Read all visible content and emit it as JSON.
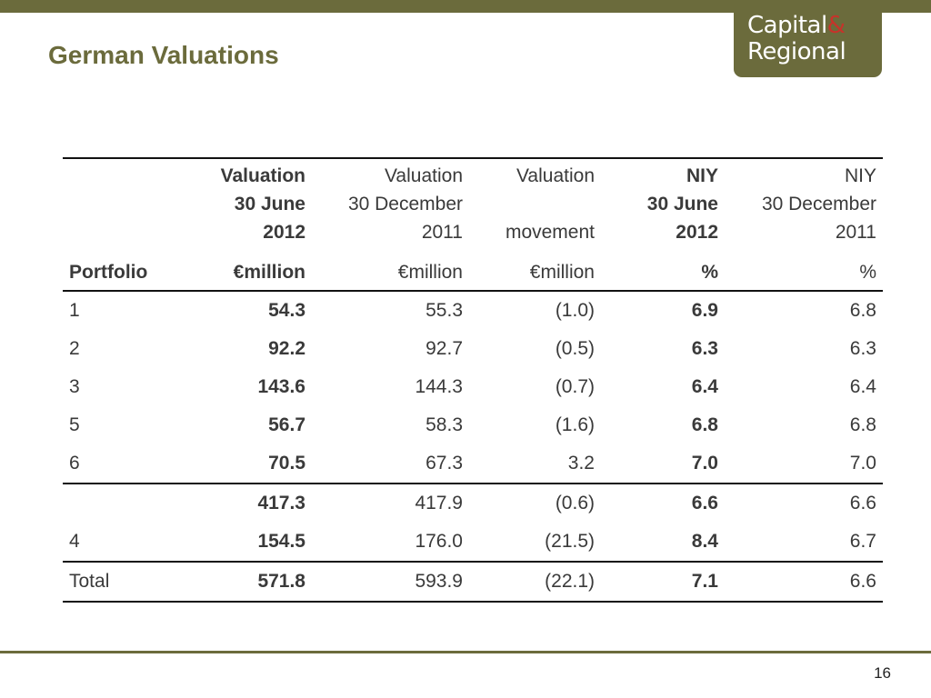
{
  "logo": {
    "line1": "Capital",
    "amp": "&",
    "line2": "Regional"
  },
  "title": "German Valuations",
  "page_number": "16",
  "table": {
    "headers": [
      {
        "lines": [
          "",
          "",
          ""
        ],
        "unit": "Portfolio",
        "bold": true
      },
      {
        "lines": [
          "Valuation",
          "30 June",
          "2012"
        ],
        "unit": "€million",
        "bold": true
      },
      {
        "lines": [
          "Valuation",
          "30 December",
          "2011"
        ],
        "unit": "€million",
        "bold": false
      },
      {
        "lines": [
          "Valuation",
          "",
          "movement"
        ],
        "unit": "€million",
        "bold": false
      },
      {
        "lines": [
          "NIY",
          "30 June",
          "2012"
        ],
        "unit": "%",
        "bold": true
      },
      {
        "lines": [
          "NIY",
          "30 December",
          "2011"
        ],
        "unit": "%",
        "bold": false
      }
    ],
    "rows": [
      [
        "1",
        "54.3",
        "55.3",
        "(1.0)",
        "6.9",
        "6.8"
      ],
      [
        "2",
        "92.2",
        "92.7",
        "(0.5)",
        "6.3",
        "6.3"
      ],
      [
        "3",
        "143.6",
        "144.3",
        "(0.7)",
        "6.4",
        "6.4"
      ],
      [
        "5",
        "56.7",
        "58.3",
        "(1.6)",
        "6.8",
        "6.8"
      ],
      [
        "6",
        "70.5",
        "67.3",
        "3.2",
        "7.0",
        "7.0"
      ],
      [
        "",
        "417.3",
        "417.9",
        "(0.6)",
        "6.6",
        "6.6"
      ],
      [
        "4",
        "154.5",
        "176.0",
        "(21.5)",
        "8.4",
        "6.7"
      ],
      [
        "Total",
        "571.8",
        "593.9",
        "(22.1)",
        "7.1",
        "6.6"
      ]
    ]
  }
}
